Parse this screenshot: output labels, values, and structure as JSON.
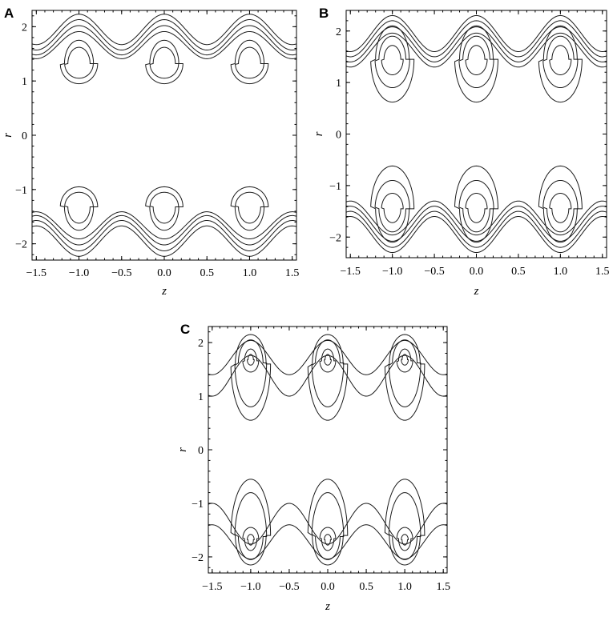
{
  "chart_data": [
    {
      "type": "contour",
      "panel": "A",
      "xlabel": "z",
      "ylabel": "r",
      "xlim": [
        -1.55,
        1.55
      ],
      "ylim": [
        -2.3,
        2.3
      ],
      "xticks": [
        "-1.5",
        "-1.0",
        "-0.5",
        "0.0",
        "0.5",
        "1.0",
        "1.5"
      ],
      "yticks": [
        "-2",
        "-1",
        "0",
        "1",
        "2"
      ],
      "grid": false,
      "centers_z": [
        -1.0,
        0.0,
        1.0
      ],
      "closed_contours": [
        {
          "center_r": 1.32,
          "rz": 0.17,
          "top": 1.75,
          "bottom": 0.95
        },
        {
          "center_r": 1.32,
          "rz": 0.13,
          "top": 1.62,
          "bottom": 1.05
        }
      ],
      "wavy_streamlines": [
        {
          "mean_r": 1.95,
          "amp": 0.28
        },
        {
          "mean_r": 1.85,
          "amp": 0.28
        },
        {
          "mean_r": 1.75,
          "amp": 0.27
        },
        {
          "mean_r": 1.66,
          "amp": 0.25
        }
      ]
    },
    {
      "type": "contour",
      "panel": "B",
      "xlabel": "z",
      "ylabel": "r",
      "xlim": [
        -1.55,
        1.55
      ],
      "ylim": [
        -2.4,
        2.4
      ],
      "xticks": [
        "-1.5",
        "-1.0",
        "-0.5",
        "0.0",
        "0.5",
        "1.0",
        "1.5"
      ],
      "yticks": [
        "-2",
        "-1",
        "0",
        "1",
        "2"
      ],
      "grid": false,
      "centers_z": [
        -1.0,
        0.0,
        1.0
      ],
      "closed_contours": [
        {
          "center_r": 1.45,
          "rz": 0.2,
          "top": 2.1,
          "bottom": 0.62
        },
        {
          "center_r": 1.45,
          "rz": 0.16,
          "top": 1.9,
          "bottom": 0.9
        },
        {
          "center_r": 1.45,
          "rz": 0.1,
          "top": 1.72,
          "bottom": 1.15
        }
      ],
      "wavy_streamlines": [
        {
          "mean_r": 1.95,
          "amp": 0.35
        },
        {
          "mean_r": 1.85,
          "amp": 0.35
        },
        {
          "mean_r": 1.74,
          "amp": 0.34
        },
        {
          "mean_r": 1.63,
          "amp": 0.33
        }
      ]
    },
    {
      "type": "contour",
      "panel": "C",
      "xlabel": "z",
      "ylabel": "r",
      "xlim": [
        -1.55,
        1.55
      ],
      "ylim": [
        -2.3,
        2.3
      ],
      "xticks": [
        "-1.5",
        "-1.0",
        "-0.5",
        "0.0",
        "0.5",
        "1.0",
        "1.5"
      ],
      "yticks": [
        "-2",
        "-1",
        "0",
        "1",
        "2"
      ],
      "grid": false,
      "centers_z": [
        -1.0,
        0.0,
        1.0
      ],
      "closed_contours": [
        {
          "center_r": 1.6,
          "rz": 0.2,
          "top": 2.15,
          "bottom": 0.55
        },
        {
          "center_r": 1.62,
          "rz": 0.16,
          "top": 2.05,
          "bottom": 0.8
        },
        {
          "center_r": 1.66,
          "rz": 0.08,
          "top": 1.88,
          "bottom": 1.45
        },
        {
          "center_r": 1.68,
          "rz": 0.035,
          "top": 1.78,
          "bottom": 1.58
        }
      ],
      "wavy_streamlines": [
        {
          "mean_r": 1.72,
          "amp": 0.32
        },
        {
          "mean_r": 1.38,
          "amp": 0.38
        }
      ]
    }
  ]
}
